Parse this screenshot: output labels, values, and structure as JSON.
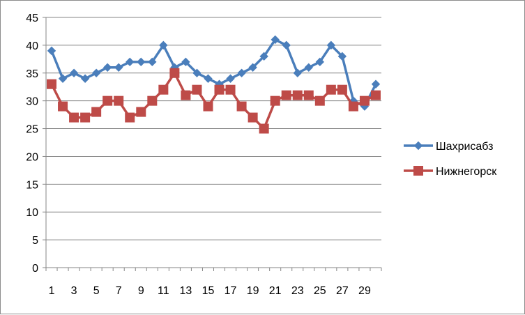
{
  "chart_data": {
    "type": "line",
    "title": "",
    "xlabel": "",
    "ylabel": "",
    "ylim": [
      0,
      45
    ],
    "ytick_step": 5,
    "x": [
      1,
      2,
      3,
      4,
      5,
      6,
      7,
      8,
      9,
      10,
      11,
      12,
      13,
      14,
      15,
      16,
      17,
      18,
      19,
      20,
      21,
      22,
      23,
      24,
      25,
      26,
      27,
      28,
      29,
      30
    ],
    "x_tick_labels": [
      "1",
      "3",
      "5",
      "7",
      "9",
      "11",
      "13",
      "15",
      "17",
      "19",
      "21",
      "23",
      "25",
      "27",
      "29"
    ],
    "y_tick_labels": [
      "0",
      "5",
      "10",
      "15",
      "20",
      "25",
      "30",
      "35",
      "40",
      "45"
    ],
    "grid": "horizontal",
    "legend_position": "right",
    "series": [
      {
        "name": "Шахрисабз",
        "color": "#4a7ebb",
        "marker": "diamond",
        "values": [
          39,
          34,
          35,
          34,
          35,
          36,
          36,
          37,
          37,
          37,
          40,
          36,
          37,
          35,
          34,
          33,
          34,
          35,
          36,
          38,
          41,
          40,
          35,
          36,
          37,
          40,
          38,
          30,
          29,
          33
        ]
      },
      {
        "name": "Нижнегорск",
        "color": "#be4b48",
        "marker": "square",
        "values": [
          33,
          29,
          27,
          27,
          28,
          30,
          30,
          27,
          28,
          30,
          32,
          35,
          31,
          32,
          29,
          32,
          32,
          29,
          27,
          25,
          30,
          31,
          31,
          31,
          30,
          32,
          32,
          29,
          30,
          31
        ]
      }
    ]
  }
}
